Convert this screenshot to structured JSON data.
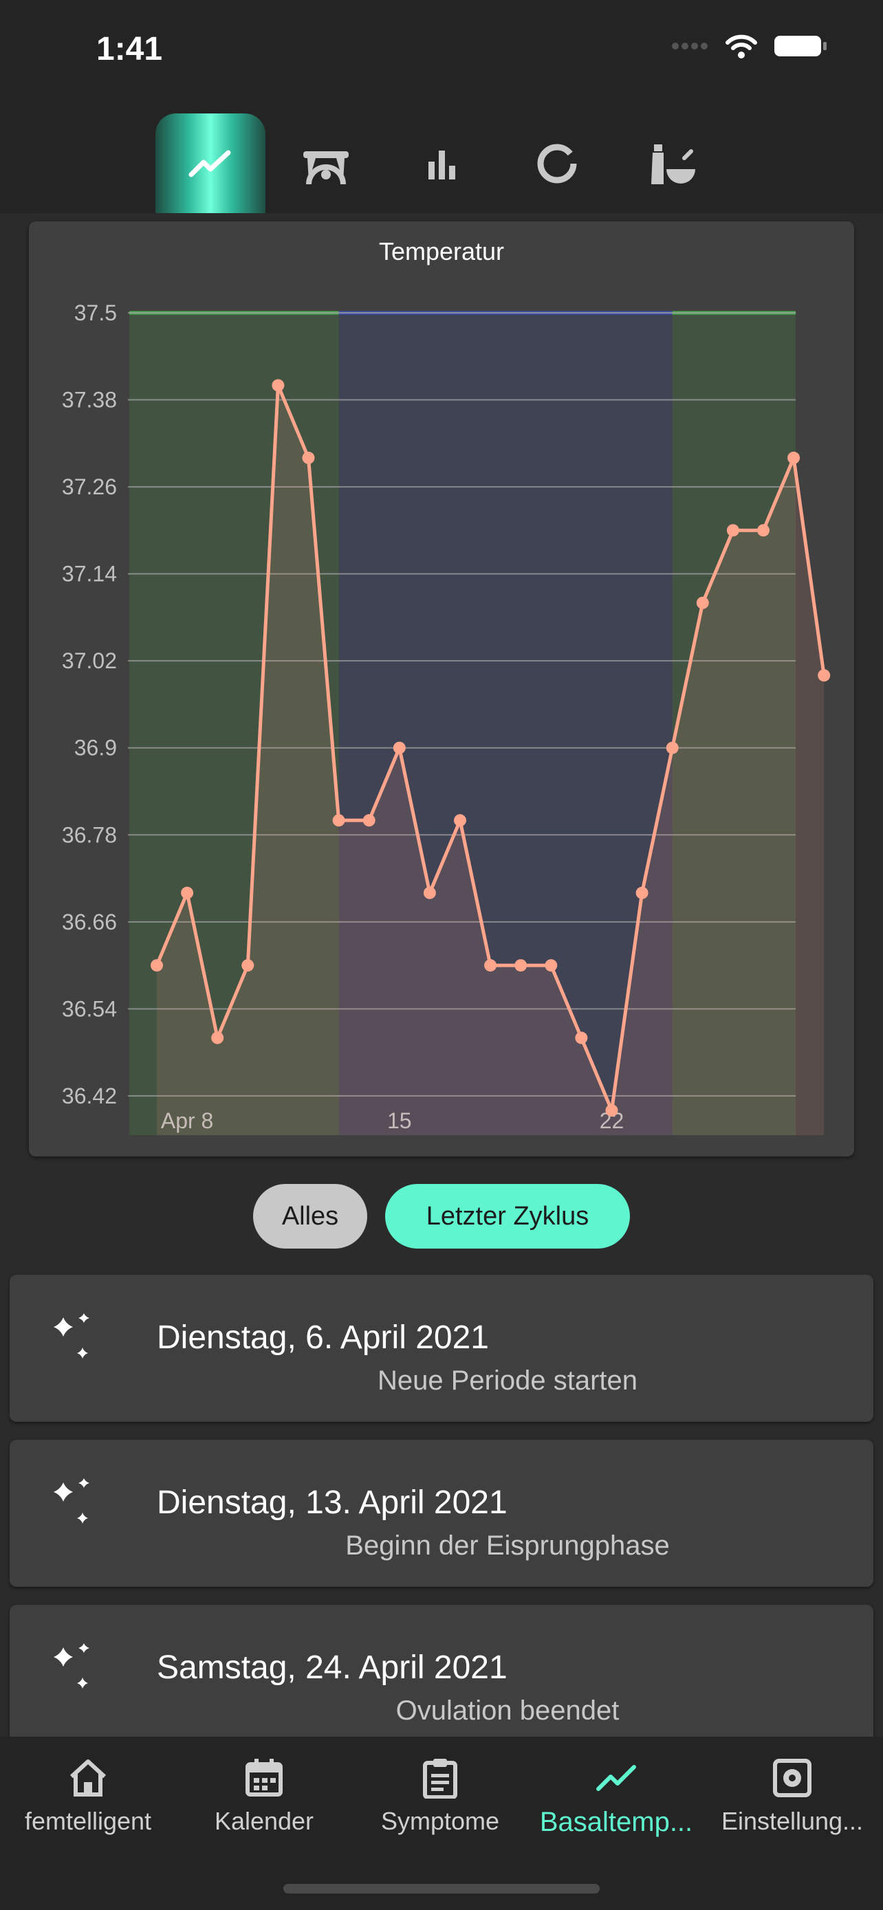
{
  "status": {
    "time": "1:41"
  },
  "top_tabs": [
    {
      "icon": "trend-icon",
      "active": true
    },
    {
      "icon": "scale-icon",
      "active": false
    },
    {
      "icon": "bar-chart-icon",
      "active": false
    },
    {
      "icon": "donut-chart-icon",
      "active": false
    },
    {
      "icon": "mortar-pestle-icon",
      "active": false
    }
  ],
  "chart_data": {
    "type": "line",
    "title": "Temperatur",
    "x_ticks": [
      "Apr 8",
      "15",
      "22"
    ],
    "y_ticks": [
      "37.5",
      "37.38",
      "37.26",
      "37.14",
      "37.02",
      "36.9",
      "36.78",
      "36.66",
      "36.54",
      "36.42"
    ],
    "ylim": [
      36.4,
      37.5
    ],
    "x": [
      "Apr 7",
      "Apr 8",
      "Apr 9",
      "Apr 10",
      "Apr 11",
      "Apr 12",
      "Apr 13",
      "Apr 14",
      "Apr 15",
      "Apr 16",
      "Apr 17",
      "Apr 18",
      "Apr 19",
      "Apr 20",
      "Apr 21",
      "Apr 22",
      "Apr 23",
      "Apr 24",
      "Apr 25",
      "Apr 26",
      "Apr 27",
      "Apr 28",
      "Apr 29"
    ],
    "series": [
      {
        "values": [
          36.6,
          36.7,
          36.5,
          36.6,
          37.4,
          37.3,
          36.8,
          36.8,
          36.9,
          36.7,
          36.8,
          36.6,
          36.6,
          36.6,
          36.5,
          36.4,
          36.7,
          36.9,
          37.1,
          37.2,
          37.2,
          37.3,
          37.0
        ]
      }
    ],
    "phases": [
      {
        "from": "Apr 6",
        "to": "Apr 13",
        "color": "#4caf50"
      },
      {
        "from": "Apr 13",
        "to": "Apr 24",
        "color": "#3f51b5"
      },
      {
        "from": "Apr 24",
        "to": "Apr 28",
        "color": "#4caf50"
      }
    ],
    "colors": {
      "line": "#ffa58c",
      "grid": "#9a9a9a"
    },
    "grid": true
  },
  "toggle": {
    "all_label": "Alles",
    "last_cycle_label": "Letzter Zyklus"
  },
  "events": [
    {
      "date": "Dienstag, 6. April 2021",
      "description": "Neue Periode starten",
      "icon": "sparkles-icon"
    },
    {
      "date": "Dienstag, 13. April 2021",
      "description": "Beginn der Eisprungphase",
      "icon": "sparkles-icon"
    },
    {
      "date": "Samstag, 24. April 2021",
      "description": "Ovulation beendet",
      "icon": "sparkles-icon"
    }
  ],
  "bottom_nav": [
    {
      "label": "femtelligent",
      "icon": "home-icon",
      "active": false
    },
    {
      "label": "Kalender",
      "icon": "calendar-icon",
      "active": false
    },
    {
      "label": "Symptome",
      "icon": "clipboard-icon",
      "active": false
    },
    {
      "label": "Basaltemp...",
      "icon": "trend-icon",
      "active": true
    },
    {
      "label": "Einstellung...",
      "icon": "settings-icon",
      "active": false
    }
  ],
  "accent_color": "#5ef5cf"
}
